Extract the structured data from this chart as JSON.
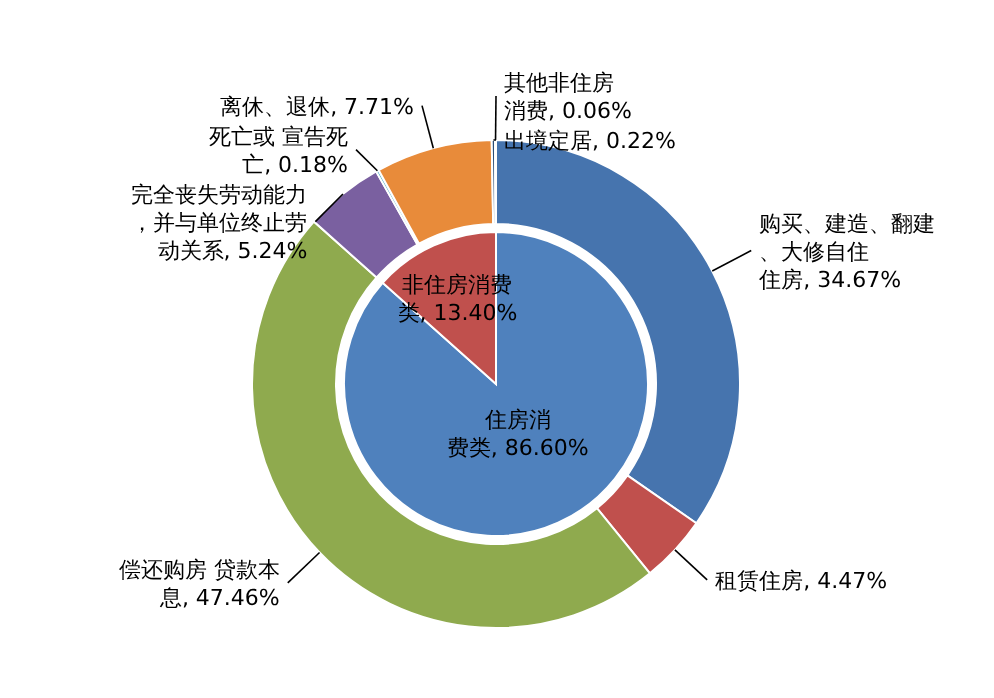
{
  "chart_data": [
    {
      "type": "pie",
      "categories": [
        "住房消费类",
        "非住房消费类"
      ],
      "values": [
        86.6,
        13.4
      ],
      "value_labels": [
        "86.60%",
        "13.40%"
      ],
      "colors": [
        "#4f81bd",
        "#c0504d"
      ]
    },
    {
      "type": "donut",
      "categories": [
        "购买、建造、翻建、大修自住住房",
        "租赁住房",
        "偿还购房 贷款本息",
        "完全丧失劳动能力，并与单位终止劳动关系",
        "死亡或  宣告死亡",
        "离休、退休",
        "出境定居",
        "其他非住房消费"
      ],
      "values": [
        34.67,
        4.47,
        47.46,
        5.24,
        0.18,
        7.71,
        0.22,
        0.06
      ],
      "value_labels": [
        "34.67%",
        "4.47%",
        "47.46%",
        "5.24%",
        "0.18%",
        "7.71%",
        "0.22%",
        "0.06%"
      ],
      "colors": [
        "#4674ae",
        "#c0504d",
        "#8faa4e",
        "#7a60a0",
        "#4bacc6",
        "#e88b3a",
        "#2c4d75",
        "#772c2a"
      ]
    }
  ]
}
